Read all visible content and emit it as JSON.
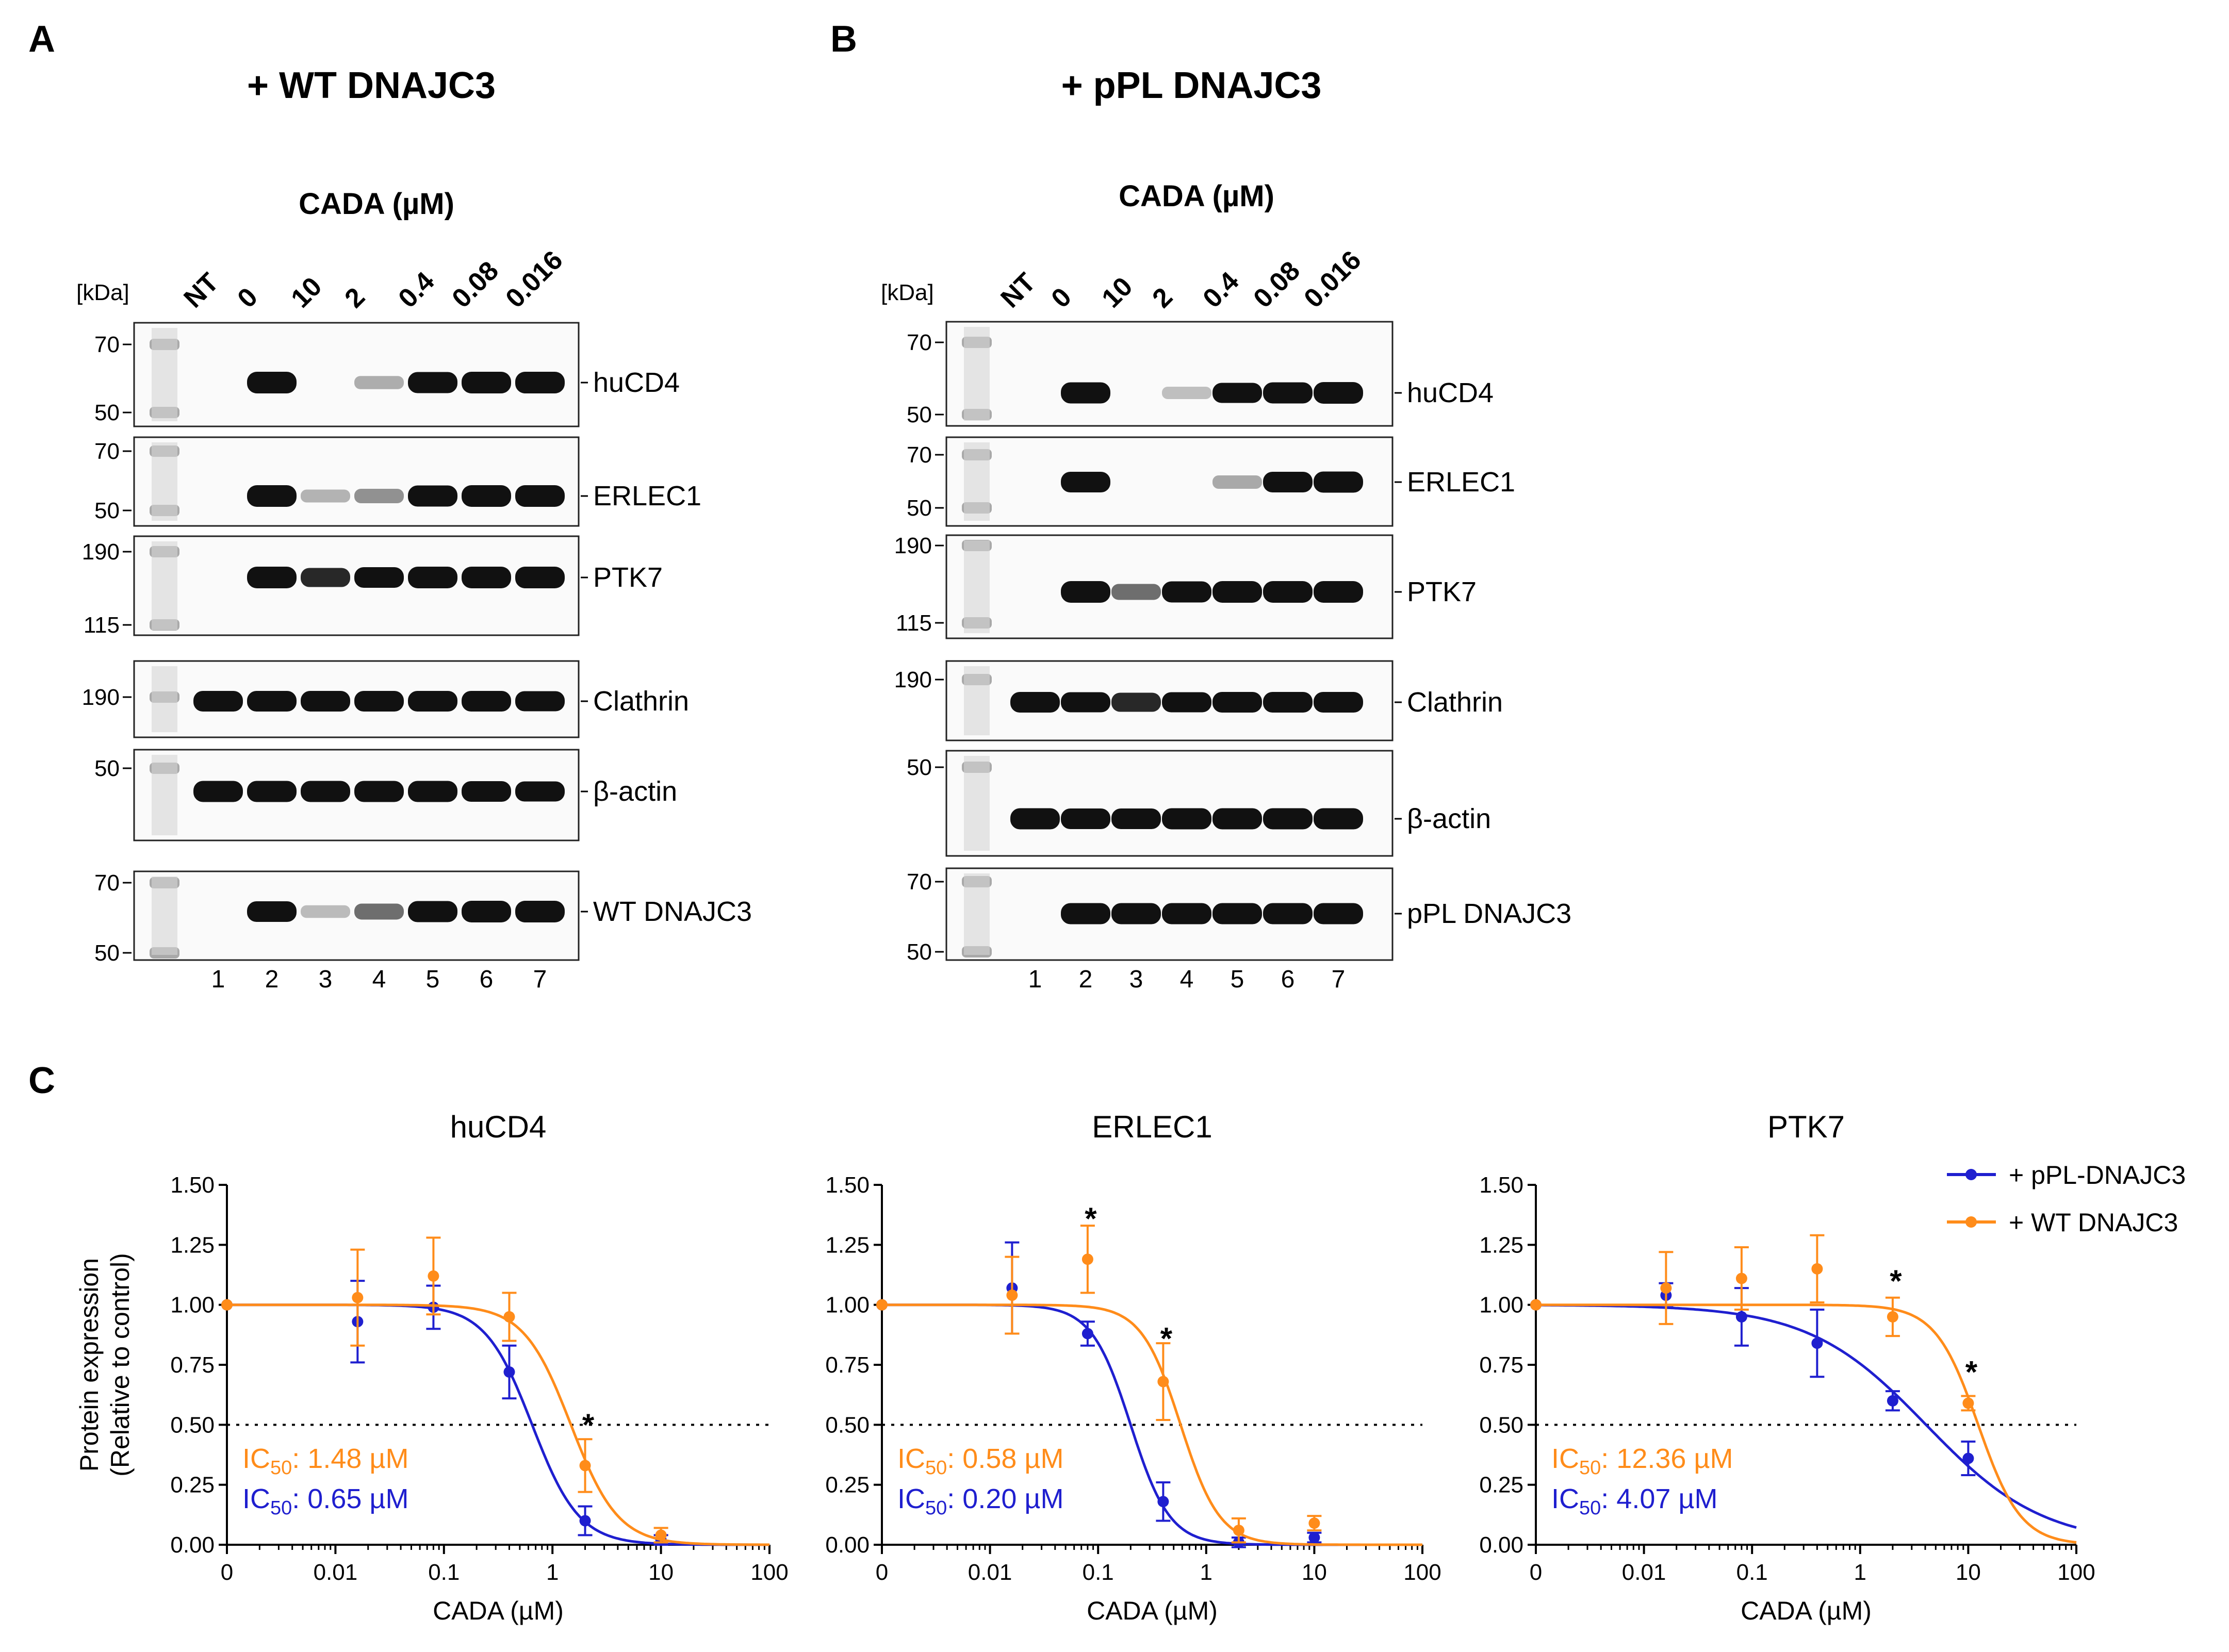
{
  "figure": {
    "panels": [
      "A",
      "B",
      "C"
    ],
    "blot_a": {
      "title": "+ WT DNAJC3",
      "condition_label": "CADA (µM)",
      "kda_label": "[kDa]",
      "lanes": [
        "NT",
        "0",
        "10",
        "2",
        "0.4",
        "0.08",
        "0.016"
      ],
      "lane_numbers": [
        "1",
        "2",
        "3",
        "4",
        "5",
        "6",
        "7"
      ],
      "strips": [
        {
          "protein": "huCD4",
          "markers": [
            "70",
            "50"
          ],
          "intensity": [
            0,
            1,
            0,
            0.18,
            0.95,
            1,
            1
          ]
        },
        {
          "protein": "ERLEC1",
          "markers": [
            "70",
            "50"
          ],
          "intensity": [
            0,
            1,
            0.15,
            0.3,
            0.95,
            1,
            1
          ]
        },
        {
          "protein": "PTK7",
          "markers": [
            "190",
            "115"
          ],
          "intensity": [
            0,
            1,
            0.75,
            0.9,
            1,
            1,
            1
          ]
        },
        {
          "protein": "Clathrin",
          "markers": [
            "190"
          ],
          "intensity": [
            0.9,
            0.9,
            0.9,
            0.9,
            0.9,
            0.9,
            0.85
          ]
        },
        {
          "protein": "β-actin",
          "markers": [
            "50"
          ],
          "intensity": [
            0.95,
            0.95,
            0.95,
            0.95,
            0.95,
            0.9,
            0.85
          ]
        },
        {
          "protein": "WT DNAJC3",
          "markers": [
            "70",
            "50"
          ],
          "intensity": [
            0,
            0.9,
            0.12,
            0.45,
            0.95,
            1,
            1
          ]
        }
      ]
    },
    "blot_b": {
      "title": "+ pPL DNAJC3",
      "condition_label": "CADA (µM)",
      "kda_label": "[kDa]",
      "lanes": [
        "NT",
        "0",
        "10",
        "2",
        "0.4",
        "0.08",
        "0.016"
      ],
      "lane_numbers": [
        "1",
        "2",
        "3",
        "4",
        "5",
        "6",
        "7"
      ],
      "strips": [
        {
          "protein": "huCD4",
          "markers": [
            "70",
            "50"
          ],
          "intensity": [
            0,
            0.95,
            0,
            0.1,
            0.85,
            0.95,
            1
          ]
        },
        {
          "protein": "ERLEC1",
          "markers": [
            "70",
            "50"
          ],
          "intensity": [
            0,
            0.9,
            0,
            0,
            0.2,
            0.9,
            0.95
          ]
        },
        {
          "protein": "PTK7",
          "markers": [
            "190",
            "115"
          ],
          "intensity": [
            0,
            1,
            0.45,
            0.95,
            1,
            1,
            1
          ]
        },
        {
          "protein": "Clathrin",
          "markers": [
            "190"
          ],
          "intensity": [
            0.9,
            0.85,
            0.75,
            0.85,
            0.9,
            0.9,
            0.9
          ]
        },
        {
          "protein": "β-actin",
          "markers": [
            "50"
          ],
          "intensity": [
            0.95,
            0.9,
            0.9,
            0.95,
            0.95,
            0.95,
            0.95
          ]
        },
        {
          "protein": "pPL DNAJC3",
          "markers": [
            "70",
            "50"
          ],
          "intensity": [
            0,
            0.95,
            0.95,
            0.95,
            0.95,
            0.95,
            0.95
          ]
        }
      ]
    }
  },
  "chart_data": [
    {
      "type": "line",
      "title": "huCD4",
      "xlabel": "CADA (µM)",
      "ylabel": "Protein expression (Relative to control)",
      "xscale": "log",
      "xticks": [
        "0",
        "0.01",
        "0.1",
        "1",
        "10",
        "100"
      ],
      "xlim": [
        0.001,
        100
      ],
      "yticks": [
        "0.00",
        "0.25",
        "0.50",
        "0.75",
        "1.00",
        "1.25",
        "1.50"
      ],
      "ylim": [
        0,
        1.5
      ],
      "reference_line": 0.5,
      "series": [
        {
          "name": "+ pPL-DNAJC3",
          "color": "#1f1fcf",
          "ic50": 0.65,
          "hill": 2.0,
          "x": [
            0.001,
            0.016,
            0.08,
            0.4,
            2,
            10
          ],
          "y": [
            1.0,
            0.93,
            0.99,
            0.72,
            0.1,
            0.02
          ],
          "err": [
            0,
            0.17,
            0.09,
            0.11,
            0.06,
            0.02
          ]
        },
        {
          "name": "+ WT DNAJC3",
          "color": "#ff8c1a",
          "ic50": 1.48,
          "hill": 2.0,
          "x": [
            0.001,
            0.016,
            0.08,
            0.4,
            2,
            10
          ],
          "y": [
            1.0,
            1.03,
            1.12,
            0.95,
            0.33,
            0.04
          ],
          "err": [
            0,
            0.2,
            0.16,
            0.1,
            0.11,
            0.03
          ]
        }
      ],
      "annotations": [
        {
          "text": "*",
          "x": 2,
          "y": 0.52
        }
      ],
      "ic50_labels": [
        {
          "prefix": "IC",
          "sub": "50",
          "value": ": 1.48 µM",
          "color": "#ff8c1a"
        },
        {
          "prefix": "IC",
          "sub": "50",
          "value": ": 0.65 µM",
          "color": "#1f1fcf"
        }
      ]
    },
    {
      "type": "line",
      "title": "ERLEC1",
      "xlabel": "CADA (µM)",
      "ylabel": "",
      "xscale": "log",
      "xticks": [
        "0",
        "0.01",
        "0.1",
        "1",
        "10",
        "100"
      ],
      "xlim": [
        0.001,
        100
      ],
      "yticks": [
        "0.00",
        "0.25",
        "0.50",
        "0.75",
        "1.00",
        "1.25",
        "1.50"
      ],
      "ylim": [
        0,
        1.5
      ],
      "reference_line": 0.5,
      "series": [
        {
          "name": "+ pPL-DNAJC3",
          "color": "#1f1fcf",
          "ic50": 0.2,
          "hill": 2.4,
          "x": [
            0.001,
            0.016,
            0.08,
            0.4,
            2,
            10
          ],
          "y": [
            1.0,
            1.07,
            0.88,
            0.18,
            0.01,
            0.03
          ],
          "err": [
            0,
            0.19,
            0.05,
            0.08,
            0.02,
            0.02
          ]
        },
        {
          "name": "+ WT DNAJC3",
          "color": "#ff8c1a",
          "ic50": 0.58,
          "hill": 2.4,
          "x": [
            0.001,
            0.016,
            0.08,
            0.4,
            2,
            10
          ],
          "y": [
            1.0,
            1.04,
            1.19,
            0.68,
            0.06,
            0.09
          ],
          "err": [
            0,
            0.16,
            0.14,
            0.16,
            0.05,
            0.03
          ]
        }
      ],
      "annotations": [
        {
          "text": "*",
          "x": 0.08,
          "y": 1.38
        },
        {
          "text": "*",
          "x": 0.4,
          "y": 0.88
        }
      ],
      "ic50_labels": [
        {
          "prefix": "IC",
          "sub": "50",
          "value": ": 0.58 µM",
          "color": "#ff8c1a"
        },
        {
          "prefix": "IC",
          "sub": "50",
          "value": ": 0.20 µM",
          "color": "#1f1fcf"
        }
      ]
    },
    {
      "type": "line",
      "title": "PTK7",
      "xlabel": "CADA (µM)",
      "ylabel": "",
      "xscale": "log",
      "xticks": [
        "0",
        "0.01",
        "0.1",
        "1",
        "10",
        "100"
      ],
      "xlim": [
        0.001,
        100
      ],
      "yticks": [
        "0.00",
        "0.25",
        "0.50",
        "0.75",
        "1.00",
        "1.25",
        "1.50"
      ],
      "ylim": [
        0,
        1.5
      ],
      "reference_line": 0.5,
      "series": [
        {
          "name": "+ pPL-DNAJC3",
          "color": "#1f1fcf",
          "ic50": 4.07,
          "hill": 0.8,
          "x": [
            0.001,
            0.016,
            0.08,
            0.4,
            2,
            10
          ],
          "y": [
            1.0,
            1.04,
            0.95,
            0.84,
            0.6,
            0.36
          ],
          "err": [
            0,
            0.05,
            0.12,
            0.14,
            0.04,
            0.07
          ]
        },
        {
          "name": "+ WT DNAJC3",
          "color": "#ff8c1a",
          "ic50": 12.36,
          "hill": 2.2,
          "x": [
            0.001,
            0.016,
            0.08,
            0.4,
            2,
            10
          ],
          "y": [
            1.0,
            1.07,
            1.11,
            1.15,
            0.95,
            0.59
          ],
          "err": [
            0,
            0.15,
            0.13,
            0.14,
            0.08,
            0.03
          ]
        }
      ],
      "annotations": [
        {
          "text": "*",
          "x": 2,
          "y": 1.12
        },
        {
          "text": "*",
          "x": 10,
          "y": 0.74
        }
      ],
      "ic50_labels": [
        {
          "prefix": "IC",
          "sub": "50",
          "value": ": 12.36 µM",
          "color": "#ff8c1a"
        },
        {
          "prefix": "IC",
          "sub": "50",
          "value": ": 4.07 µM",
          "color": "#1f1fcf"
        }
      ]
    }
  ],
  "legend": {
    "items": [
      {
        "label": "+ pPL-DNAJC3",
        "color": "#1f1fcf"
      },
      {
        "label": "+ WT DNAJC3",
        "color": "#ff8c1a"
      }
    ]
  }
}
